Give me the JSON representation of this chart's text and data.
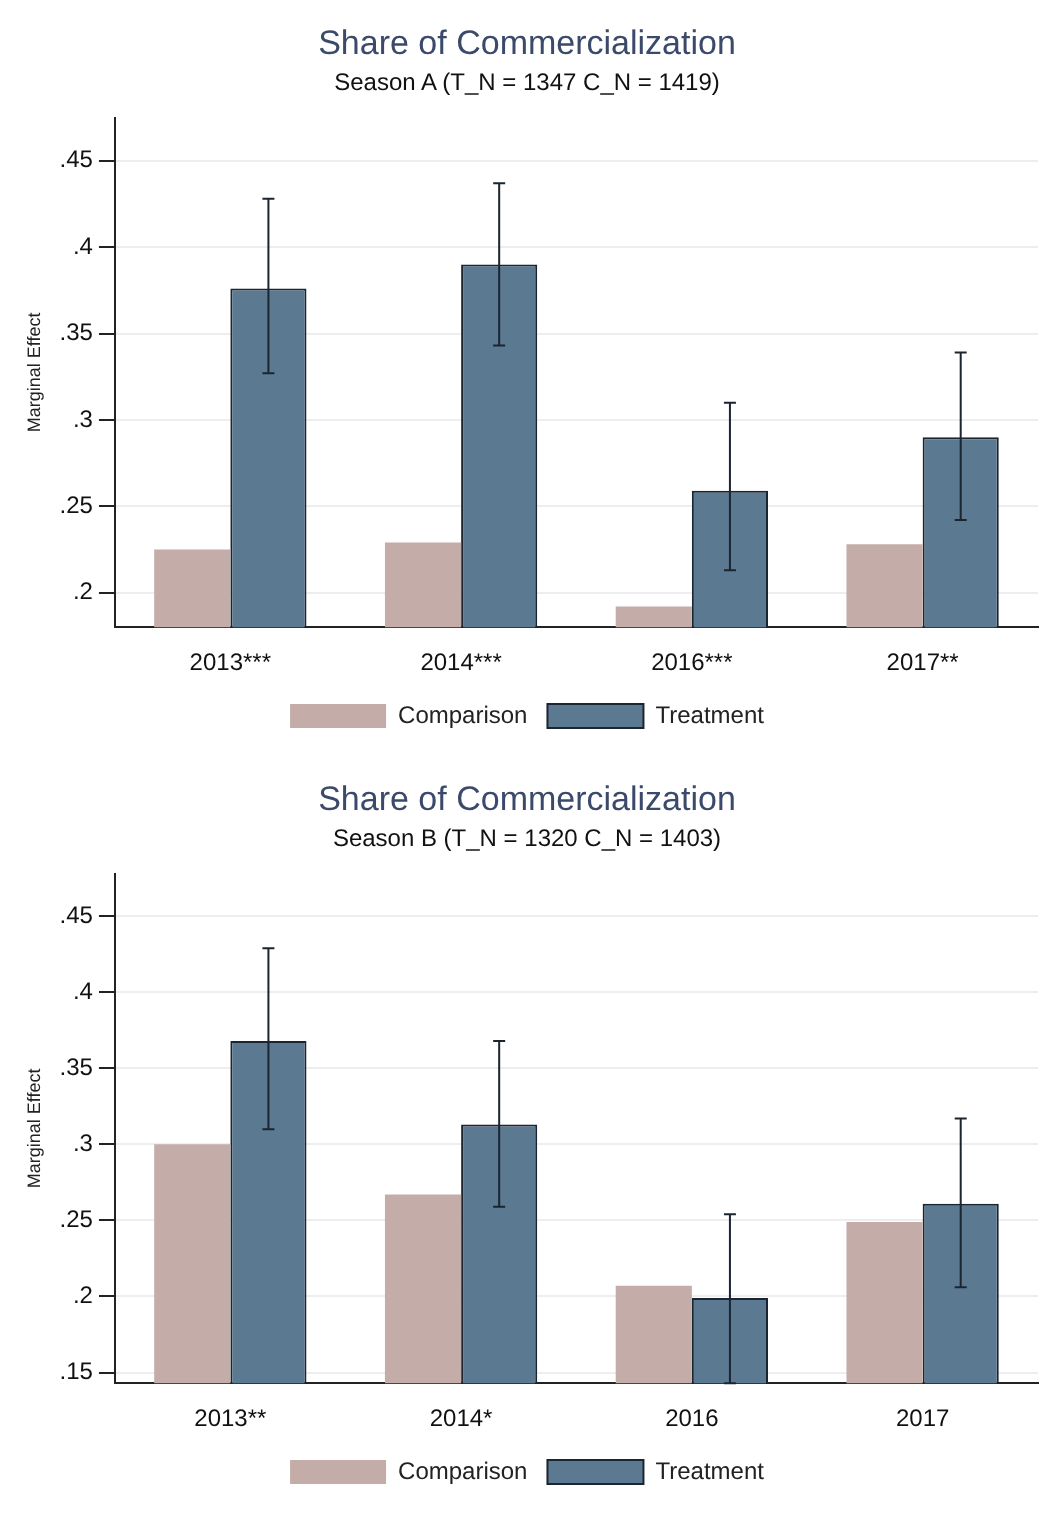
{
  "chart_data": [
    {
      "type": "bar",
      "title": "Share of Commercialization",
      "subtitle": "Season A (T_N = 1347 C_N = 1419)",
      "ylabel": "Marginal Effect",
      "categories": [
        "2013***",
        "2014***",
        "2016***",
        "2017**"
      ],
      "series": [
        {
          "name": "Comparison",
          "color": "#c4aca8",
          "values": [
            0.225,
            0.229,
            0.192,
            0.228
          ]
        },
        {
          "name": "Treatment",
          "color": "#5b7a92",
          "values": [
            0.376,
            0.39,
            0.259,
            0.29
          ],
          "errors": [
            [
              0.327,
              0.428
            ],
            [
              0.343,
              0.437
            ],
            [
              0.213,
              0.31
            ],
            [
              0.242,
              0.339
            ]
          ]
        }
      ],
      "ylim": [
        0.18,
        0.475
      ],
      "yticks": [
        {
          "value": 0.2,
          "label": ".2"
        },
        {
          "value": 0.25,
          "label": ".25"
        },
        {
          "value": 0.3,
          "label": ".3"
        },
        {
          "value": 0.35,
          "label": ".35"
        },
        {
          "value": 0.4,
          "label": ".4"
        },
        {
          "value": 0.45,
          "label": ".45"
        }
      ],
      "grid": "y",
      "legend": "bottom"
    },
    {
      "type": "bar",
      "title": "Share of Commercialization",
      "subtitle": "Season B (T_N = 1320 C_N = 1403)",
      "ylabel": "Marginal Effect",
      "categories": [
        "2013**",
        "2014*",
        "2016",
        "2017"
      ],
      "series": [
        {
          "name": "Comparison",
          "color": "#c4aca8",
          "values": [
            0.3,
            0.267,
            0.207,
            0.249
          ]
        },
        {
          "name": "Treatment",
          "color": "#5b7a92",
          "values": [
            0.368,
            0.313,
            0.199,
            0.261
          ],
          "errors": [
            [
              0.31,
              0.429
            ],
            [
              0.259,
              0.368
            ],
            [
              0.143,
              0.254
            ],
            [
              0.206,
              0.317
            ]
          ]
        }
      ],
      "ylim": [
        0.143,
        0.478
      ],
      "yticks": [
        {
          "value": 0.15,
          "label": ".15"
        },
        {
          "value": 0.2,
          "label": ".2"
        },
        {
          "value": 0.25,
          "label": ".25"
        },
        {
          "value": 0.3,
          "label": ".3"
        },
        {
          "value": 0.35,
          "label": ".35"
        },
        {
          "value": 0.4,
          "label": ".4"
        },
        {
          "value": 0.45,
          "label": ".45"
        }
      ],
      "grid": "y",
      "legend": "bottom"
    }
  ]
}
